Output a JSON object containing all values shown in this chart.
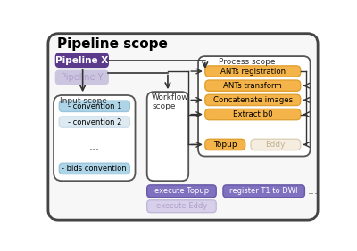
{
  "title": "Pipeline scope",
  "bg_color": "#ffffff",
  "outer_box_fill": "#f7f7f7",
  "outer_box_edge": "#444444",
  "pipeline_x_color": "#5b3a8c",
  "pipeline_x_text": "Pipeline X",
  "pipeline_y_color": "#ccc5e0",
  "pipeline_y_text": "Pipeline Y",
  "input_scope_label": "Input scope",
  "input_items": [
    "convention 1",
    "convention 2",
    "bids convention"
  ],
  "input_item_colors": [
    "#aed4e8",
    "#ddeaf2",
    "#aed4e8"
  ],
  "input_item_edge_colors": [
    "#9ac4dc",
    "#ccdde8",
    "#9ac4dc"
  ],
  "workflow_scope_label": "Workflow\nscope",
  "process_scope_label": "Process scope",
  "process_items": [
    "ANTs registration",
    "ANTs transform",
    "Concatenate images",
    "Extract b0"
  ],
  "process_item_color": "#f5b44a",
  "process_item_edge": "#e0a030",
  "topup_text": "Topup",
  "topup_color": "#f5b44a",
  "topup_edge": "#e0a030",
  "eddy_text": "Eddy",
  "eddy_color": "#f5ede0",
  "eddy_edge": "#ddd0b8",
  "execute_topup_text": "execute Topup",
  "execute_topup_color": "#8070c0",
  "execute_topup_edge": "#6858a8",
  "execute_eddy_text": "execute Eddy",
  "execute_eddy_color": "#d8d0ea",
  "execute_eddy_edge": "#c0b8d8",
  "register_t1_text": "register T1 to DWI",
  "register_t1_color": "#8070c0",
  "register_t1_edge": "#6858a8"
}
